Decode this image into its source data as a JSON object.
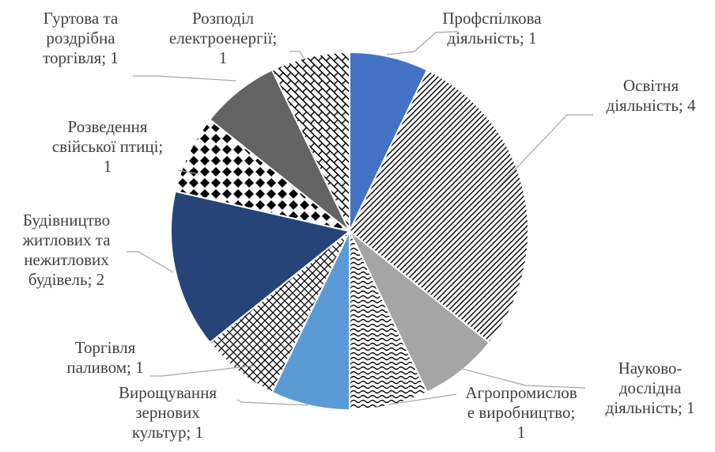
{
  "chart_data": {
    "type": "pie",
    "title": "",
    "slices": [
      {
        "category": "Профспілкова діяльність",
        "value": 1,
        "color": "#4472c4",
        "fill": "solid",
        "label_lines": [
          "Профспілкова",
          "діяльність; 1"
        ]
      },
      {
        "category": "Освітня діяльність",
        "value": 4,
        "color": "#000000",
        "fill": "diagonal-stripes",
        "label_lines": [
          "Освітня",
          "діяльність; 4"
        ]
      },
      {
        "category": "Науково-дослідна діяльність",
        "value": 1,
        "color": "#a5a5a5",
        "fill": "solid",
        "label_lines": [
          "Науково-",
          "дослідна",
          "діяльність; 1"
        ]
      },
      {
        "category": "Агропромислове виробництво",
        "value": 1,
        "color": "#000000",
        "fill": "wave-pattern",
        "label_lines": [
          "Агропромислов",
          "е виробництво;",
          "1"
        ]
      },
      {
        "category": "Вирощування зернових культур",
        "value": 1,
        "color": "#5b9bd5",
        "fill": "solid",
        "label_lines": [
          "Вирощування",
          "зернових",
          "культур; 1"
        ]
      },
      {
        "category": "Торгівля паливом",
        "value": 1,
        "color": "#000000",
        "fill": "crosshatch",
        "label_lines": [
          "Торгівля",
          "паливом; 1"
        ]
      },
      {
        "category": "Будівництво житлових та нежитлових будівель",
        "value": 2,
        "color": "#264478",
        "fill": "solid",
        "label_lines": [
          "Будівництво",
          "житлових та",
          "нежитлових",
          "будівель; 2"
        ]
      },
      {
        "category": "Розведення свійської птиці",
        "value": 1,
        "color": "#000000",
        "fill": "diamond-pattern",
        "label_lines": [
          "Розведення",
          "свійської птиці;",
          "1"
        ]
      },
      {
        "category": "Гуртова та роздрібна торгівля",
        "value": 1,
        "color": "#636363",
        "fill": "solid",
        "label_lines": [
          "Гуртова та",
          "роздрібна",
          "торгівля; 1"
        ]
      },
      {
        "category": "Розподіл електроенергії",
        "value": 1,
        "color": "#000000",
        "fill": "brick-pattern",
        "label_lines": [
          "Розподіл",
          "електроенергії;",
          "1"
        ]
      }
    ]
  }
}
